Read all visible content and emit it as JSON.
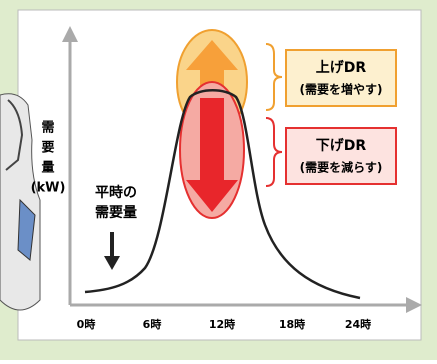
{
  "y_axis": {
    "label_lines": [
      "需",
      "要",
      "量",
      "(kW)"
    ]
  },
  "x_axis": {
    "labels": [
      "0時",
      "6時",
      "12時",
      "18時",
      "24時"
    ]
  },
  "normal": {
    "lines": [
      "平時の",
      "需要量"
    ]
  },
  "up_dr": {
    "title": "上げDR",
    "note": "(需要を増やす)"
  },
  "down_dr": {
    "title": "下げDR",
    "note": "(需要を減らす)"
  }
}
